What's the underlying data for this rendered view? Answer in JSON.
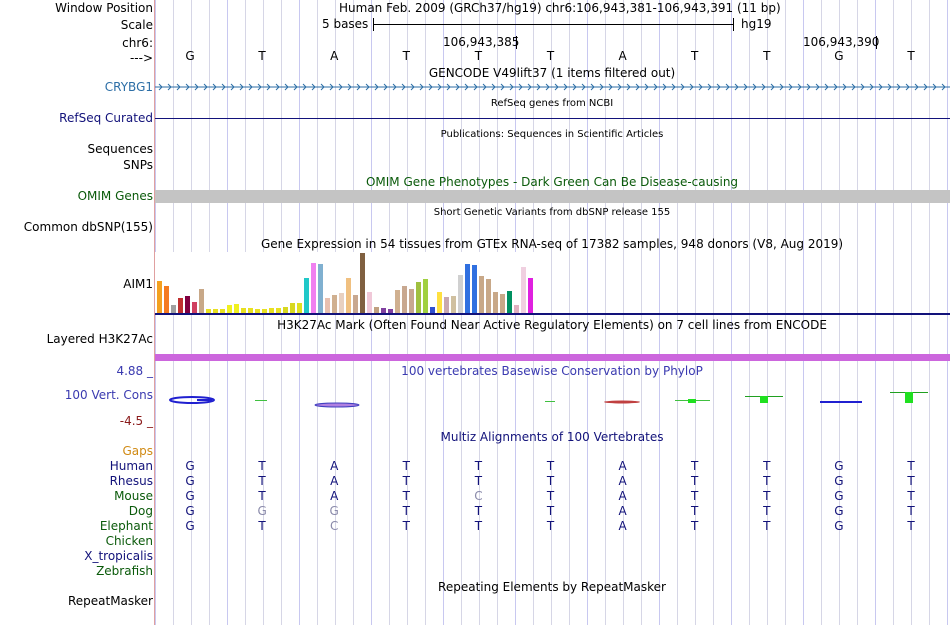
{
  "colors": {
    "gene_blue": "#2c6ea6",
    "navy": "#12127a",
    "dark_green": "#0a5a0a",
    "omim_bar": "#c4c4c4",
    "h3k27ac": "#cc66dd",
    "gaps_orange": "#d08a14",
    "cons_pos": "#3a3ab0",
    "cons_neg": "#8a1a1a",
    "gray_base": "#8a8aaa"
  },
  "header": {
    "window_position_label": "Window Position",
    "scale_label": "Scale",
    "chr_label": "chr6:",
    "strand_label": "--->",
    "title": "Human Feb. 2009 (GRCh37/hg19)   chr6:106,943,381-106,943,391 (11 bp)",
    "scale_text": "5 bases",
    "assembly": "hg19",
    "coord_left": "106,943,385",
    "coord_right": "106,943,390"
  },
  "sequence": [
    "G",
    "T",
    "A",
    "T",
    "T",
    "T",
    "A",
    "T",
    "T",
    "G",
    "T"
  ],
  "tracks": {
    "gencode": {
      "title": "GENCODE V49lift37 (1 items filtered out)",
      "gene": "CRYBG1"
    },
    "refseq": {
      "title": "RefSeq genes from NCBI",
      "label": "RefSeq Curated"
    },
    "publications": {
      "title": "Publications: Sequences in Scientific Articles",
      "label1": "Sequences",
      "label2": "SNPs"
    },
    "omim": {
      "title": "OMIM Gene Phenotypes - Dark Green Can Be Disease-causing",
      "label": "OMIM Genes"
    },
    "dbsnp": {
      "title": "Short Genetic Variants from dbSNP release 155",
      "label": "Common dbSNP(155)"
    },
    "gtex": {
      "title": "Gene Expression in 54 tissues from GTEx RNA-seq of 17382 samples, 948 donors (V8, Aug 2019)",
      "label": "AIM1",
      "bars": [
        {
          "h": 32,
          "c": "#f4a020"
        },
        {
          "h": 27,
          "c": "#f47a20"
        },
        {
          "h": 8,
          "c": "#a0a0a0"
        },
        {
          "h": 15,
          "c": "#c03030"
        },
        {
          "h": 17,
          "c": "#800040"
        },
        {
          "h": 11,
          "c": "#d04060"
        },
        {
          "h": 24,
          "c": "#c8a888"
        },
        {
          "h": 4,
          "c": "#e8e020"
        },
        {
          "h": 4,
          "c": "#e8e020"
        },
        {
          "h": 4,
          "c": "#e8e020"
        },
        {
          "h": 8,
          "c": "#f0f020"
        },
        {
          "h": 9,
          "c": "#f0f020"
        },
        {
          "h": 5,
          "c": "#e8e020"
        },
        {
          "h": 5,
          "c": "#e8e020"
        },
        {
          "h": 4,
          "c": "#e8e020"
        },
        {
          "h": 4,
          "c": "#e8e020"
        },
        {
          "h": 5,
          "c": "#e8e020"
        },
        {
          "h": 5,
          "c": "#e8e020"
        },
        {
          "h": 6,
          "c": "#d8d820"
        },
        {
          "h": 10,
          "c": "#d8d820"
        },
        {
          "h": 10,
          "c": "#e0e020"
        },
        {
          "h": 35,
          "c": "#20c8c8"
        },
        {
          "h": 50,
          "c": "#f080f0"
        },
        {
          "h": 49,
          "c": "#80b0d0"
        },
        {
          "h": 15,
          "c": "#e8c0b0"
        },
        {
          "h": 18,
          "c": "#d0b090"
        },
        {
          "h": 20,
          "c": "#e8d0c0"
        },
        {
          "h": 35,
          "c": "#f0c080"
        },
        {
          "h": 18,
          "c": "#c8a890"
        },
        {
          "h": 60,
          "c": "#806040"
        },
        {
          "h": 21,
          "c": "#f0c8d8"
        },
        {
          "h": 6,
          "c": "#c0a080"
        },
        {
          "h": 5,
          "c": "#8040a0"
        },
        {
          "h": 4,
          "c": "#8040a0"
        },
        {
          "h": 23,
          "c": "#d0b090"
        },
        {
          "h": 27,
          "c": "#c8a890"
        },
        {
          "h": 24,
          "c": "#c8a890"
        },
        {
          "h": 31,
          "c": "#a0c040"
        },
        {
          "h": 34,
          "c": "#a0d040"
        },
        {
          "h": 6,
          "c": "#3050d0"
        },
        {
          "h": 21,
          "c": "#ffe040"
        },
        {
          "h": 16,
          "c": "#c8a8b0"
        },
        {
          "h": 17,
          "c": "#d0c0a0"
        },
        {
          "h": 38,
          "c": "#d0d0d0"
        },
        {
          "h": 49,
          "c": "#3070e0"
        },
        {
          "h": 48,
          "c": "#3070e0"
        },
        {
          "h": 37,
          "c": "#c8a888"
        },
        {
          "h": 34,
          "c": "#c8a888"
        },
        {
          "h": 21,
          "c": "#c8a888"
        },
        {
          "h": 19,
          "c": "#c8a888"
        },
        {
          "h": 22,
          "c": "#009060"
        },
        {
          "h": 8,
          "c": "#e0b0c0"
        },
        {
          "h": 46,
          "c": "#f0d0e0"
        },
        {
          "h": 35,
          "c": "#e020e0"
        }
      ]
    },
    "h3k27ac": {
      "title": "H3K27Ac Mark (Often Found Near Active Regulatory Elements) on 7 cell lines from ENCODE",
      "label": "Layered H3K27Ac"
    },
    "phylop": {
      "title": "100 vertebrates Basewise Conservation by PhyloP",
      "label": "100 Vert. Cons",
      "max": "4.88 _",
      "min": "-4.5 _"
    },
    "multiz": {
      "title": "Multiz Alignments of 100 Vertebrates",
      "gaps_label": "Gaps",
      "species": [
        {
          "name": "Human",
          "bases": [
            "G",
            "T",
            "A",
            "T",
            "T",
            "T",
            "A",
            "T",
            "T",
            "G",
            "T"
          ],
          "dim": []
        },
        {
          "name": "Rhesus",
          "bases": [
            "G",
            "T",
            "A",
            "T",
            "T",
            "T",
            "A",
            "T",
            "T",
            "G",
            "T"
          ],
          "dim": []
        },
        {
          "name": "Mouse",
          "bases": [
            "G",
            "T",
            "A",
            "T",
            "C",
            "T",
            "A",
            "T",
            "T",
            "G",
            "T"
          ],
          "dim": [
            4
          ]
        },
        {
          "name": "Dog",
          "bases": [
            "G",
            "G",
            "G",
            "T",
            "T",
            "T",
            "A",
            "T",
            "T",
            "G",
            "T"
          ],
          "dim": [
            1,
            2
          ]
        },
        {
          "name": "Elephant",
          "bases": [
            "G",
            "T",
            "C",
            "T",
            "T",
            "T",
            "A",
            "T",
            "T",
            "G",
            "T"
          ],
          "dim": [
            2
          ]
        },
        {
          "name": "Chicken",
          "bases": [],
          "dim": []
        },
        {
          "name": "X_tropicalis",
          "bases": [],
          "dim": []
        },
        {
          "name": "Zebrafish",
          "bases": [],
          "dim": []
        }
      ]
    },
    "repeatmasker": {
      "title": "Repeating Elements by RepeatMasker",
      "label": "RepeatMasker"
    }
  }
}
